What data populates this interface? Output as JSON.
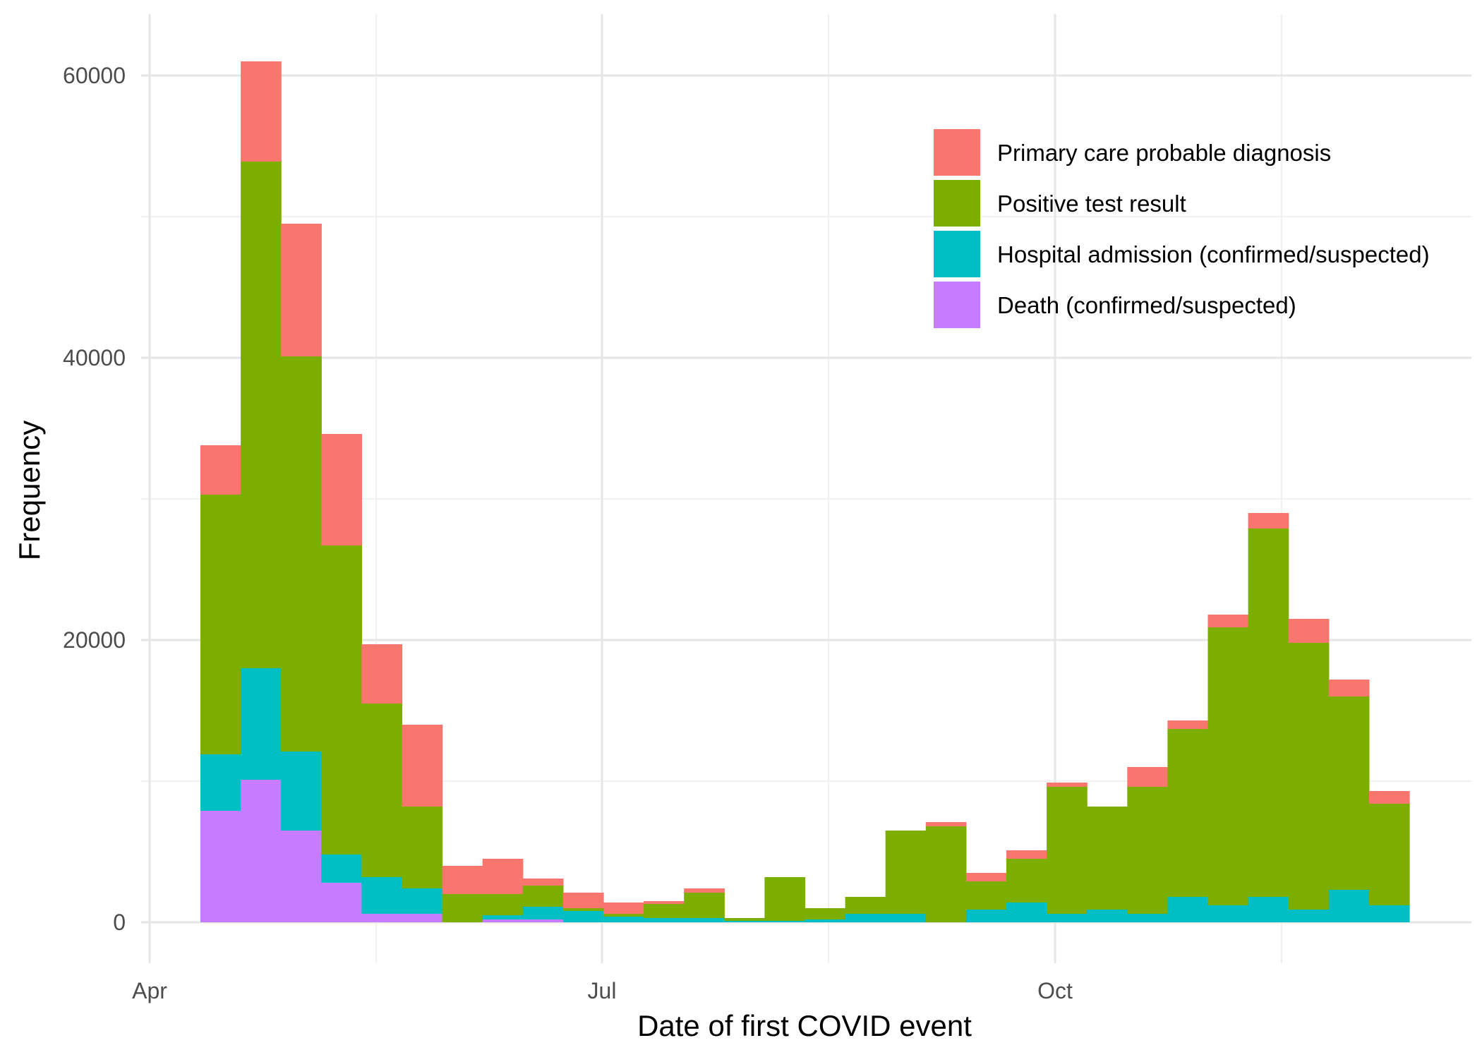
{
  "chart_data": {
    "type": "bar",
    "stacked": true,
    "title": "",
    "xlabel": "Date of first COVID event",
    "ylabel": "Frequency",
    "x_ticks": [
      "Apr",
      "Jul",
      "Oct"
    ],
    "y_ticks": [
      "0",
      "20000",
      "40000",
      "60000"
    ],
    "ylim": [
      0,
      63000
    ],
    "grid": true,
    "legend_position": "top-right",
    "series": [
      {
        "name": "Death (confirmed/suspected)",
        "color": "#C77CFF",
        "values": [
          7900,
          10100,
          6500,
          2800,
          600,
          600,
          0,
          200,
          200,
          0,
          0,
          0,
          0,
          0,
          0,
          0,
          0,
          0,
          0,
          0,
          0,
          0,
          0,
          0,
          0,
          0,
          0,
          0,
          0,
          0,
          0
        ]
      },
      {
        "name": "Hospital admission (confirmed/suspected)",
        "color": "#00BFC4",
        "values": [
          4000,
          7900,
          5600,
          2000,
          2600,
          1800,
          0,
          300,
          900,
          800,
          400,
          300,
          300,
          100,
          100,
          200,
          600,
          600,
          0,
          900,
          1400,
          600,
          900,
          600,
          1800,
          1200,
          1800,
          900,
          2300,
          1200,
          0
        ]
      },
      {
        "name": "Positive test result",
        "color": "#7CAE00",
        "values": [
          18400,
          35900,
          28000,
          21900,
          12300,
          5800,
          2000,
          1500,
          1500,
          200,
          200,
          1000,
          1800,
          200,
          3100,
          800,
          1200,
          5900,
          6800,
          2000,
          3100,
          9000,
          7300,
          9000,
          11900,
          19700,
          26100,
          18900,
          13700,
          7200,
          0
        ]
      },
      {
        "name": "Primary care probable diagnosis",
        "color": "#F8766D",
        "values": [
          3500,
          7100,
          9400,
          7900,
          4200,
          5800,
          2000,
          2500,
          500,
          1100,
          800,
          200,
          300,
          0,
          0,
          0,
          0,
          0,
          300,
          600,
          600,
          300,
          0,
          1400,
          600,
          900,
          1100,
          1700,
          1200,
          900,
          0
        ]
      }
    ]
  }
}
